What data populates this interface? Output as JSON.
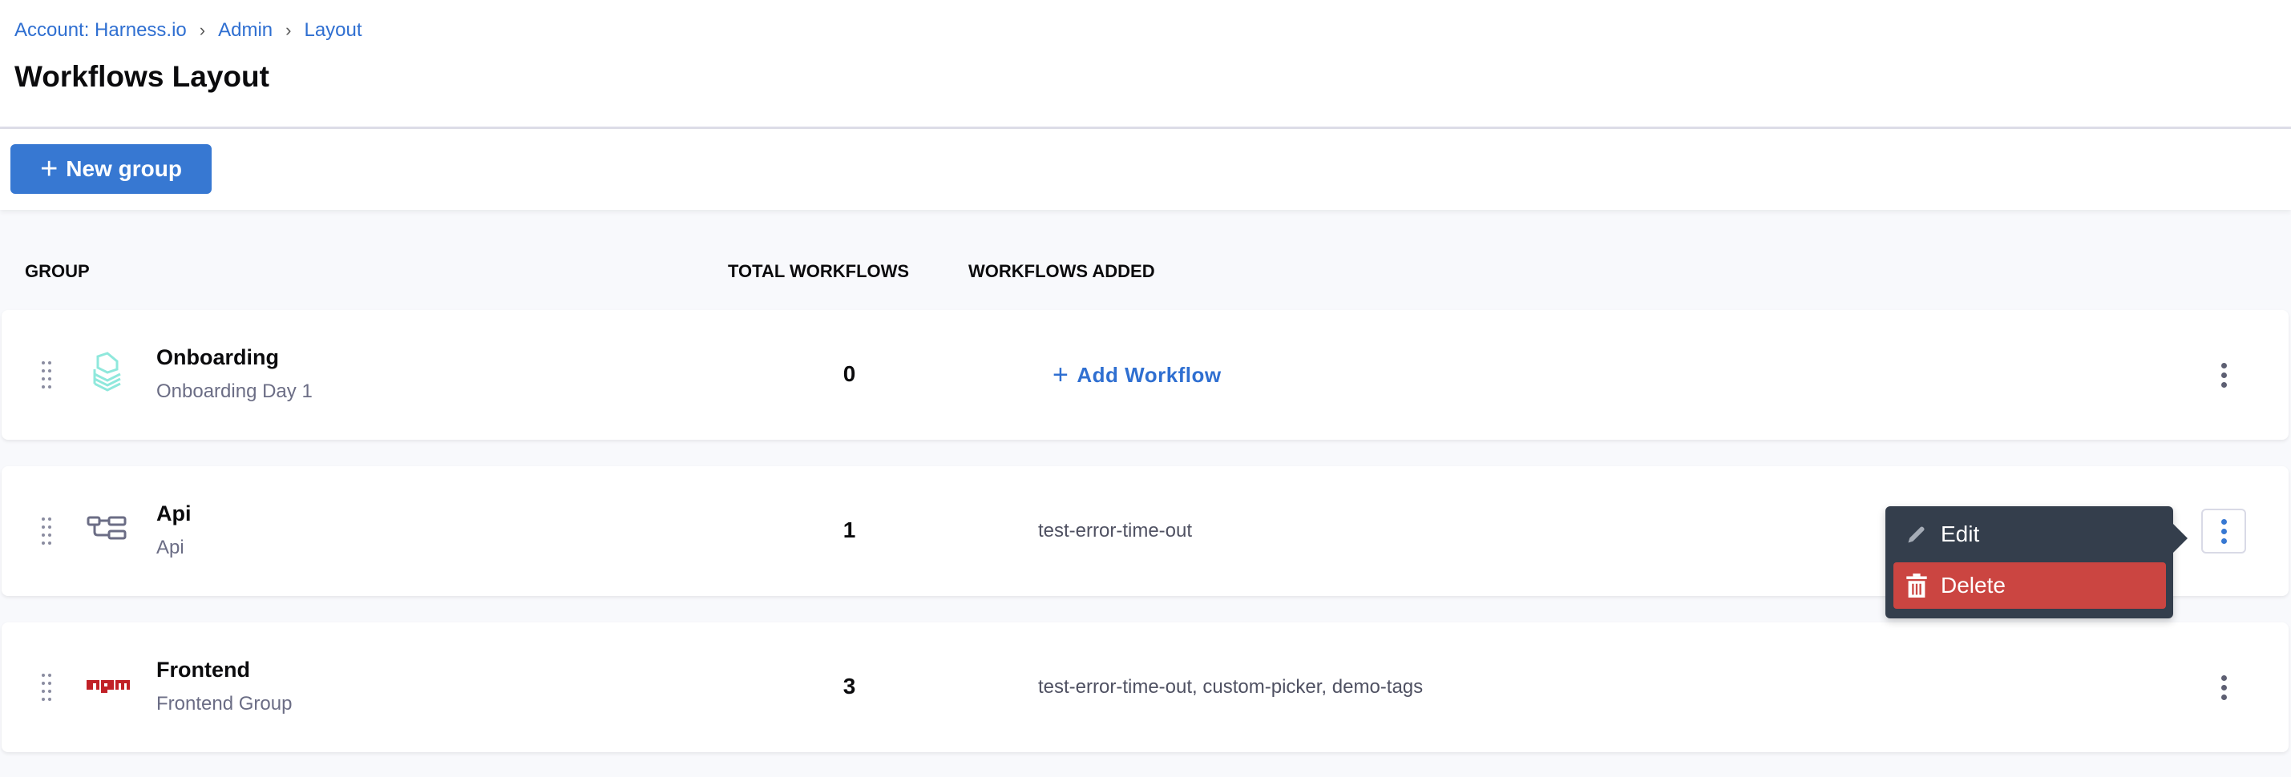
{
  "breadcrumb": [
    "Account: Harness.io",
    "Admin",
    "Layout"
  ],
  "page_title": "Workflows Layout",
  "toolbar": {
    "new_group_label": "New group"
  },
  "columns": {
    "group": "GROUP",
    "total": "TOTAL WORKFLOWS",
    "added": "WORKFLOWS ADDED"
  },
  "rows": [
    {
      "name": "Onboarding",
      "subtitle": "Onboarding Day 1",
      "icon": "stack-icon",
      "total": "0",
      "workflows": "",
      "add_label": "Add Workflow"
    },
    {
      "name": "Api",
      "subtitle": "Api",
      "icon": "pipeline-icon",
      "total": "1",
      "workflows": "test-error-time-out"
    },
    {
      "name": "Frontend",
      "subtitle": "Frontend Group",
      "icon": "npm-icon",
      "total": "3",
      "workflows": "test-error-time-out, custom-picker, demo-tags"
    }
  ],
  "context_menu": {
    "edit": "Edit",
    "delete": "Delete"
  },
  "colors": {
    "accent": "#3778d2",
    "danger": "#cb4541",
    "menu_bg": "#343e4c"
  }
}
